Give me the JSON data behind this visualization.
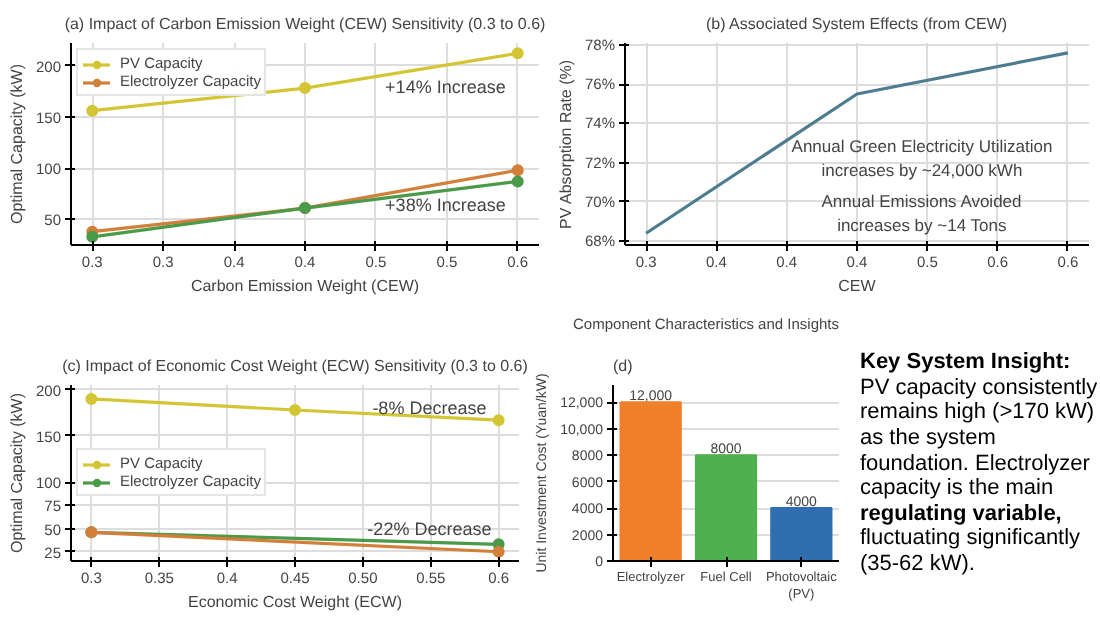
{
  "chart_data": [
    {
      "type": "line",
      "title": "(a) Impact of Carbon Emission Weight (CEW) Sensitivity (0.3 to 0.6)",
      "xlabel": "Carbon Emission Weight (CEW)",
      "ylabel": "Optimal Capacity (kW)",
      "x": [
        0.3,
        0.45,
        0.6
      ],
      "series": [
        {
          "name": "PV Capacity",
          "color": "#d4c534",
          "values": [
            156,
            178,
            212
          ]
        },
        {
          "name": "Electrolyzer Capacity",
          "color": "#d27f3a",
          "values": [
            38,
            61,
            98
          ]
        },
        {
          "color": "#4a9a4a",
          "values": [
            33,
            61,
            87
          ]
        }
      ],
      "xlim": [
        0.285,
        0.615
      ],
      "ylim": [
        25,
        222
      ],
      "xticks": [
        0.3,
        {
          "value": 0.35,
          "label": "0.3"
        },
        0.4,
        {
          "value": 0.45,
          "label": "0.4"
        },
        0.5,
        {
          "value": 0.55,
          "label": "0.5"
        },
        0.6
      ],
      "yticks": [
        50,
        100,
        150,
        200
      ],
      "annotations": [
        "+14% Increase",
        "+38% Increase"
      ],
      "grid": true,
      "legend": "top left",
      "marker": "circle"
    },
    {
      "type": "line",
      "title": "(b) Associated System Effects (from CEW)",
      "xlabel": "CEW",
      "ylabel": "PV Absorption Rate (%)",
      "x": [
        0.3,
        0.45,
        0.6
      ],
      "series": [
        {
          "color": "#4d7c8f",
          "values": [
            68.4,
            75.5,
            77.6
          ]
        }
      ],
      "xlim": [
        0.285,
        0.615
      ],
      "ylim": [
        67.8,
        78.1
      ],
      "xticks": [
        0.3,
        {
          "value": 0.35,
          "label": "0.4"
        },
        0.4,
        {
          "value": 0.45,
          "label": "0.4"
        },
        0.5,
        {
          "value": 0.55,
          "label": "0.6"
        },
        0.6
      ],
      "yticks": [
        {
          "value": 68,
          "label": "68%"
        },
        {
          "value": 70,
          "label": "70%"
        },
        {
          "value": 72,
          "label": "72%"
        },
        {
          "value": 74,
          "label": "74%"
        },
        {
          "value": 76,
          "label": "76%"
        },
        {
          "value": 78,
          "label": "78%"
        }
      ],
      "annotations": [
        "Annual Green Electricity Utilization\nincreases by ~24,000 kWh",
        "Annual Emissions Avoided\nincreases by ~14 Tons"
      ],
      "grid": true
    },
    {
      "type": "line",
      "title": "(c) Impact of Economic Cost Weight (ECW) Sensitivity (0.3 to 0.6)",
      "xlabel": "Economic Cost Weight (ECW)",
      "ylabel": "Optimal Capacity (kW)",
      "series": [
        {
          "name": "PV Capacity",
          "color": "#d4c534",
          "x": [
            0.3,
            0.45,
            0.6
          ],
          "values": [
            190,
            178,
            167
          ]
        },
        {
          "name": "Electrolyzer Capacity",
          "color": "#4a9a4a",
          "x": [
            0.3,
            0.6
          ],
          "values": [
            46,
            33
          ]
        },
        {
          "color": "#d27f3a",
          "x": [
            0.3,
            0.6
          ],
          "values": [
            46,
            25
          ]
        }
      ],
      "xlim": [
        0.285,
        0.615
      ],
      "ylim": [
        15,
        205
      ],
      "xticks": [
        0.3,
        0.35,
        0.4,
        0.45,
        {
          "value": 0.5,
          "label": "0.50"
        },
        0.55,
        0.6
      ],
      "yticks": [
        25,
        50,
        75,
        100,
        150,
        200
      ],
      "annotations": [
        "-8% Decrease",
        "-22% Decrease"
      ],
      "grid": true,
      "legend": "left",
      "marker": "circle"
    },
    {
      "type": "bar",
      "title": "Component Characteristics and Insights",
      "ylabel": "Unit Investment Cost (Yuan/kW)",
      "categories": [
        "Electrolyzer",
        "Fuel Cell",
        "Photovoltaic (PV)"
      ],
      "values": [
        12000,
        8000,
        4000
      ],
      "colors": [
        "#f07f2a",
        "#4caf50",
        "#2f6fb0"
      ],
      "value_labels": [
        "12,000",
        "8000",
        "4000"
      ],
      "ylim": [
        0,
        13300
      ],
      "yticks": [
        0,
        2000,
        4000,
        6000,
        8000,
        {
          "value": 10000,
          "label": "10,000"
        },
        {
          "value": 12000,
          "label": "12,000"
        }
      ],
      "annotations": [
        "(d)"
      ],
      "grid": "y"
    },
    {
      "type": "other",
      "title": "Key System Insight:",
      "annotations": [
        "PV capacity consistently remains high (>170 kW) as the system foundation. Electrolyzer capacity is the main",
        "regulating variable,",
        "fluctuating significantly (35-62 kW)."
      ]
    }
  ]
}
